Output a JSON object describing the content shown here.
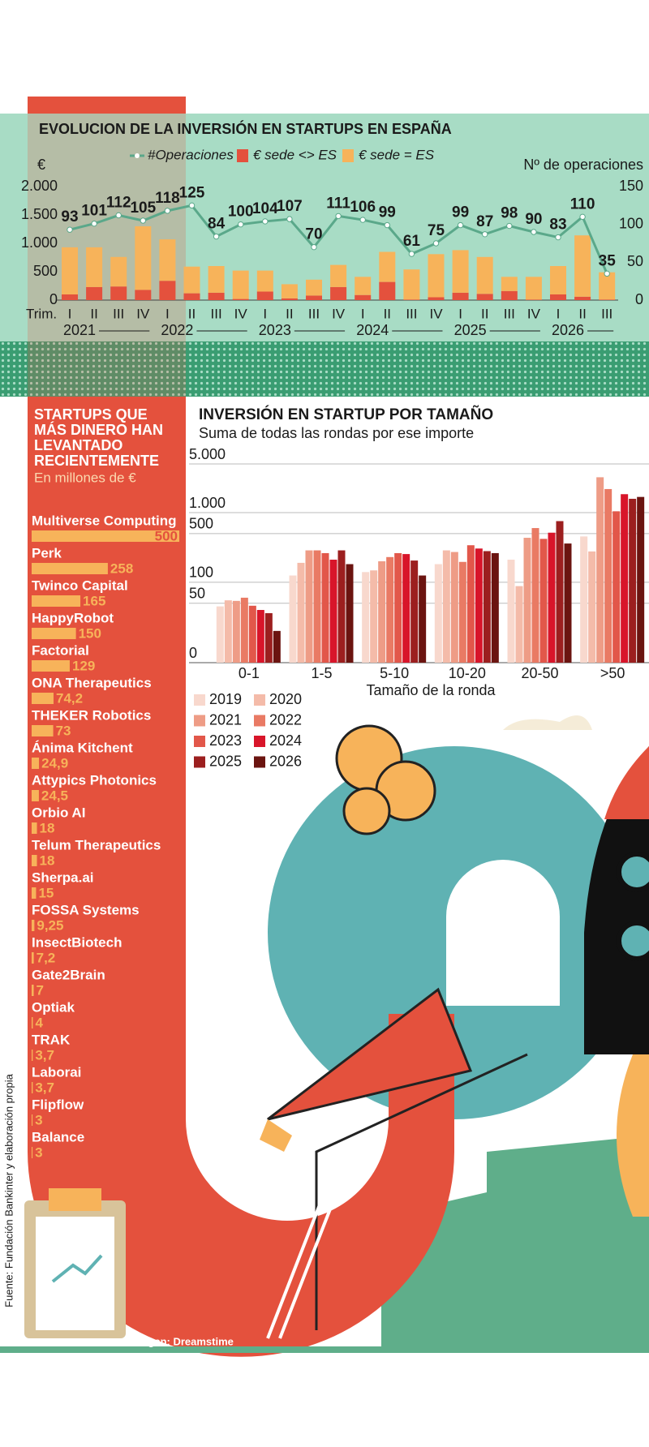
{
  "chart_data": [
    {
      "type": "bar_line",
      "title": "EVOLUCION DE LA INVERSIÓN EN STARTUPS EN ESPAÑA",
      "ylabel": "€",
      "y2label": "Nº de operaciones",
      "xlabel": "Trim.",
      "categories": [
        "I",
        "II",
        "III",
        "IV",
        "I",
        "II",
        "III",
        "IV",
        "I",
        "II",
        "III",
        "IV",
        "I",
        "II",
        "III",
        "IV",
        "I",
        "II",
        "III",
        "IV",
        "I",
        "II",
        "III"
      ],
      "years": [
        "2021",
        "2022",
        "2023",
        "2024",
        "2025",
        "2026"
      ],
      "ylim": [
        0,
        2000
      ],
      "yticks": [
        0,
        500,
        {
          "value": 1000,
          "label": "1.000"
        },
        {
          "value": 1500,
          "label": "1.500"
        },
        {
          "value": 2000,
          "label": "2.000"
        }
      ],
      "y2lim": [
        0,
        150
      ],
      "y2ticks": [
        0,
        50,
        100,
        150
      ],
      "stacked": true,
      "series": [
        {
          "name": "#Operaciones",
          "type": "line",
          "axis": "y2",
          "color": "#5aa88a",
          "values": [
            93,
            101,
            112,
            105,
            118,
            125,
            84,
            100,
            104,
            107,
            70,
            111,
            106,
            99,
            61,
            75,
            99,
            87,
            98,
            90,
            83,
            110,
            35
          ]
        },
        {
          "name": "€ sede <> ES",
          "color": "#e4513d",
          "values": [
            100,
            230,
            240,
            180,
            340,
            120,
            130,
            20,
            150,
            30,
            80,
            230,
            90,
            320,
            10,
            50,
            130,
            110,
            160,
            10,
            100,
            60,
            10
          ]
        },
        {
          "name": "€ sede = ES",
          "color": "#f7b35a",
          "values": [
            830,
            700,
            520,
            1120,
            730,
            470,
            470,
            500,
            370,
            250,
            280,
            390,
            320,
            530,
            530,
            760,
            750,
            650,
            250,
            400,
            500,
            1080,
            480
          ]
        }
      ]
    },
    {
      "type": "hbar",
      "title": [
        "STARTUPS  QUE",
        "MÁS DINERO HAN",
        "LEVANTADO",
        "RECIENTEMENTE"
      ],
      "subtitle": "En millones de €",
      "color": "#f7b35a",
      "categories": [
        "Multiverse Computing",
        "Perk",
        "Twinco Capital",
        "HappyRobot",
        "Factorial",
        "ONA Therapeutics",
        "THEKER Robotics",
        "Ánima Kitchent",
        "Attypics Photonics",
        "Orbio AI",
        "Telum Therapeutics",
        "Sherpa.ai",
        "FOSSA Systems",
        "InsectBiotech",
        "Gate2Brain",
        "Optiak",
        "TRAK",
        "Laborai",
        "Flipflow",
        "Balance"
      ],
      "values": [
        500,
        258,
        165,
        150,
        129,
        74.2,
        73,
        24.9,
        24.5,
        18,
        18,
        15,
        9.25,
        7.2,
        7,
        4,
        3.7,
        3.7,
        3,
        3
      ],
      "value_labels": [
        "500",
        "258",
        "165",
        "150",
        "129",
        "74,2",
        "73",
        "24,9",
        "24,5",
        "18",
        "18",
        "15",
        "9,25",
        "7,2",
        "7",
        "4",
        "3,7",
        "3,7",
        "3",
        "3"
      ]
    },
    {
      "type": "grouped_bar",
      "title": "INVERSIÓN EN STARTUP POR TAMAÑO",
      "subtitle": "Suma de todas las rondas por ese importe",
      "xlabel": "Tamaño de la ronda",
      "categories": [
        "0-1",
        "1-5",
        "5-10",
        "10-20",
        "20-50",
        ">50"
      ],
      "log_scale": true,
      "grid": true,
      "ylim": [
        7,
        5000
      ],
      "yticks": [
        {
          "value": 7,
          "label": "0"
        },
        50,
        100,
        500,
        {
          "value": 1000,
          "label": "1.000"
        },
        {
          "value": 5000,
          "label": "5.000"
        }
      ],
      "series": [
        {
          "name": "2019",
          "color": "#f8d8cd",
          "values": [
            45,
            125,
            140,
            182,
            211,
            455
          ]
        },
        {
          "name": "2020",
          "color": "#f4bba9",
          "values": [
            55,
            190,
            148,
            287,
            88,
            277
          ]
        },
        {
          "name": "2021",
          "color": "#ee9c86",
          "values": [
            54,
            287,
            200,
            272,
            435,
            3220
          ]
        },
        {
          "name": "2022",
          "color": "#e97a64",
          "values": [
            60,
            287,
            230,
            196,
            600,
            2180
          ]
        },
        {
          "name": "2023",
          "color": "#e2574a",
          "values": [
            46,
            262,
            262,
            340,
            420,
            1045
          ]
        },
        {
          "name": "2024",
          "color": "#d8152a",
          "values": [
            40,
            211,
            254,
            305,
            515,
            1840
          ]
        },
        {
          "name": "2025",
          "color": "#9c1f1f",
          "values": [
            36,
            287,
            205,
            280,
            755,
            1580
          ]
        },
        {
          "name": "2026",
          "color": "#6b1410",
          "values": [
            20,
            182,
            125,
            262,
            360,
            1680
          ]
        }
      ]
    }
  ],
  "source": "Fuente: Fundación Bankinter y elaboración propia",
  "credit": "Imagen: Dreamstime"
}
